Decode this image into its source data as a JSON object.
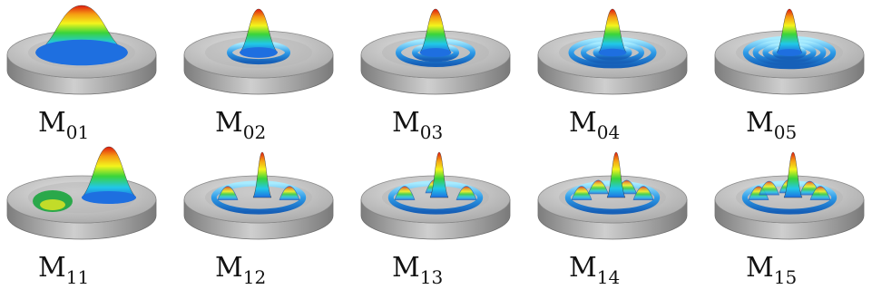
{
  "figure": {
    "modes": [
      {
        "main": "M",
        "sub": "01",
        "m": 0,
        "n": 1
      },
      {
        "main": "M",
        "sub": "02",
        "m": 0,
        "n": 2
      },
      {
        "main": "M",
        "sub": "03",
        "m": 0,
        "n": 3
      },
      {
        "main": "M",
        "sub": "04",
        "m": 0,
        "n": 4
      },
      {
        "main": "M",
        "sub": "05",
        "m": 0,
        "n": 5
      },
      {
        "main": "M",
        "sub": "11",
        "m": 1,
        "n": 1
      },
      {
        "main": "M",
        "sub": "12",
        "m": 1,
        "n": 2
      },
      {
        "main": "M",
        "sub": "13",
        "m": 1,
        "n": 3
      },
      {
        "main": "M",
        "sub": "14",
        "m": 1,
        "n": 4
      },
      {
        "main": "M",
        "sub": "15",
        "m": 1,
        "n": 5
      }
    ],
    "colors": {
      "plate_top": "#c9c9c9",
      "plate_side": "#8f8f8f",
      "ring": "#2d8fe0",
      "ring_highlight": "#9fe3ff",
      "peak_gradient": [
        "#1e6fe0",
        "#21c7e8",
        "#3ad43a",
        "#f4f41c",
        "#f59a12",
        "#e01a10"
      ]
    }
  }
}
